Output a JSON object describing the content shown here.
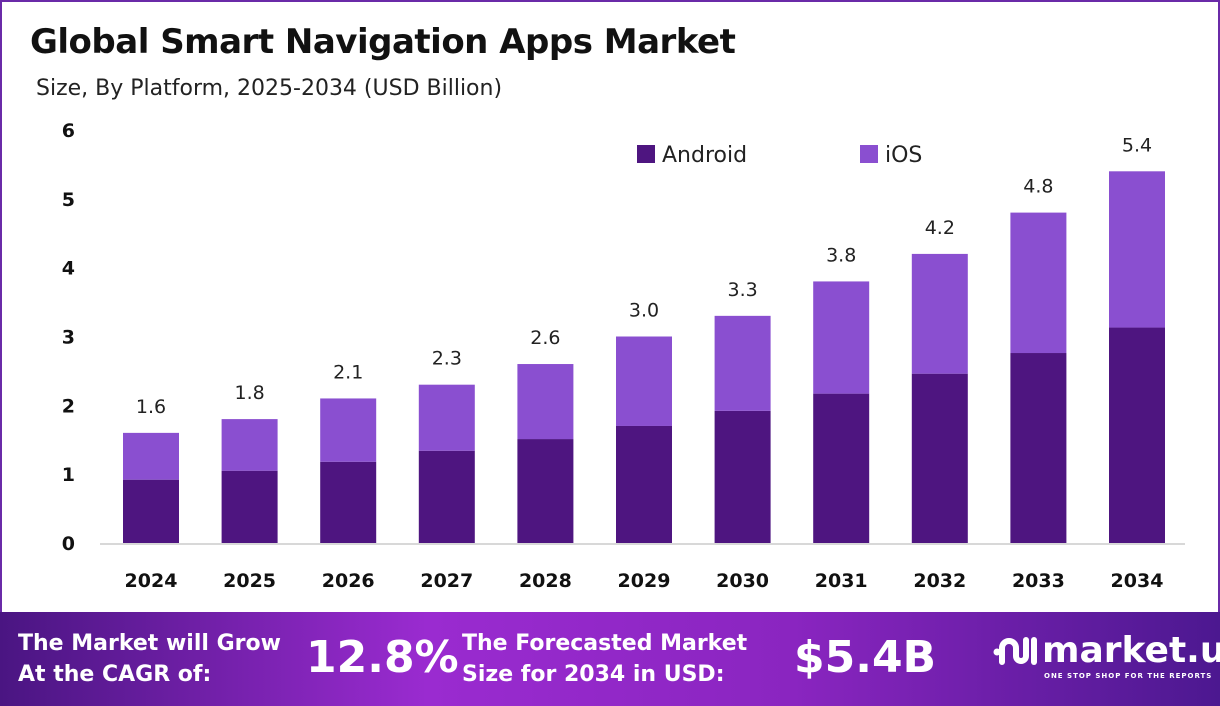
{
  "chart_data": {
    "type": "bar",
    "stacked": true,
    "title": "Global Smart Navigation Apps Market",
    "subtitle": "Size, By Platform, 2025-2034 (USD Billion)",
    "categories": [
      "2024",
      "2025",
      "2026",
      "2027",
      "2028",
      "2029",
      "2030",
      "2031",
      "2032",
      "2033",
      "2034"
    ],
    "series": [
      {
        "name": "Android",
        "color": "#4e1580",
        "values": [
          0.92,
          1.05,
          1.18,
          1.34,
          1.51,
          1.7,
          1.92,
          2.17,
          2.46,
          2.76,
          3.13
        ]
      },
      {
        "name": "iOS",
        "color": "#8a4fd0",
        "values": [
          0.68,
          0.75,
          0.92,
          0.96,
          1.09,
          1.3,
          1.38,
          1.63,
          1.74,
          2.04,
          2.27
        ]
      }
    ],
    "totals": [
      "1.6",
      "1.8",
      "2.1",
      "2.3",
      "2.6",
      "3.0",
      "3.3",
      "3.8",
      "4.2",
      "4.8",
      "5.4"
    ],
    "ylim": [
      0,
      6
    ],
    "yticks": [
      "0",
      "1",
      "2",
      "3",
      "4",
      "5",
      "6"
    ],
    "grid": false,
    "legend": "top-right"
  },
  "footer": {
    "cagr_label_line1": "The Market will Grow",
    "cagr_label_line2": "At the CAGR of:",
    "cagr_value": "12.8%",
    "forecast_label_line1": "The Forecasted Market",
    "forecast_label_line2": "Size for 2034 in USD:",
    "forecast_value": "$5.4B",
    "logo_name": "market.us",
    "logo_tagline": "ONE STOP SHOP FOR THE REPORTS"
  }
}
